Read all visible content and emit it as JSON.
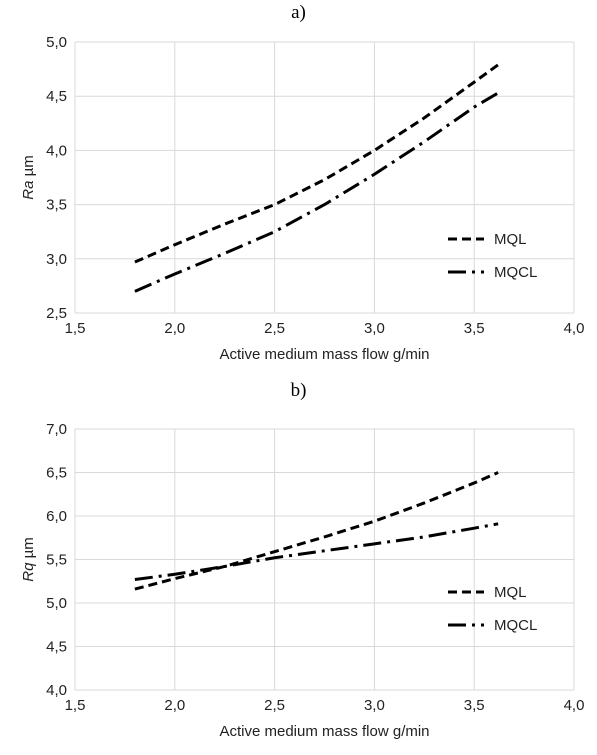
{
  "chart_data": [
    {
      "type": "line",
      "panel_label": "a)",
      "xlabel": "Active medium mass flow  g/min",
      "ylabel_symbol": "Ra",
      "ylabel_unit": "µm",
      "xlim": [
        1.5,
        4.0
      ],
      "ylim": [
        2.5,
        5.0
      ],
      "xticks": [
        1.5,
        2.0,
        2.5,
        3.0,
        3.5,
        4.0
      ],
      "yticks": [
        2.5,
        3.0,
        3.5,
        4.0,
        4.5,
        5.0
      ],
      "xtick_labels": [
        "1,5",
        "2,0",
        "2,5",
        "3,0",
        "3,5",
        "4,0"
      ],
      "ytick_labels": [
        "2,5",
        "3,0",
        "3,5",
        "4,0",
        "4,5",
        "5,0"
      ],
      "grid": true,
      "legend_position": "right",
      "series": [
        {
          "name": "MQL",
          "dash": "dashed",
          "x": [
            1.8,
            2.0,
            2.25,
            2.5,
            2.75,
            3.0,
            3.25,
            3.5,
            3.62
          ],
          "y": [
            2.97,
            3.13,
            3.32,
            3.5,
            3.73,
            4.0,
            4.3,
            4.63,
            4.79
          ]
        },
        {
          "name": "MQCL",
          "dash": "dashdot",
          "x": [
            1.8,
            2.0,
            2.25,
            2.5,
            2.75,
            3.0,
            3.25,
            3.5,
            3.62
          ],
          "y": [
            2.7,
            2.86,
            3.05,
            3.25,
            3.5,
            3.78,
            4.08,
            4.4,
            4.53
          ]
        }
      ]
    },
    {
      "type": "line",
      "panel_label": "b)",
      "xlabel": "Active medium mass flow  g/min",
      "ylabel_symbol": "Rq",
      "ylabel_unit": "µm",
      "xlim": [
        1.5,
        4.0
      ],
      "ylim": [
        4.0,
        7.0
      ],
      "xticks": [
        1.5,
        2.0,
        2.5,
        3.0,
        3.5,
        4.0
      ],
      "yticks": [
        4.0,
        4.5,
        5.0,
        5.5,
        6.0,
        6.5,
        7.0
      ],
      "xtick_labels": [
        "1,5",
        "2,0",
        "2,5",
        "3,0",
        "3,5",
        "4,0"
      ],
      "ytick_labels": [
        "4,0",
        "4,5",
        "5,0",
        "5,5",
        "6,0",
        "6,5",
        "7,0"
      ],
      "grid": true,
      "legend_position": "right",
      "series": [
        {
          "name": "MQL",
          "dash": "dashed",
          "x": [
            1.8,
            2.0,
            2.25,
            2.5,
            2.75,
            3.0,
            3.25,
            3.5,
            3.62
          ],
          "y": [
            5.16,
            5.28,
            5.42,
            5.59,
            5.76,
            5.94,
            6.15,
            6.38,
            6.5
          ]
        },
        {
          "name": "MQCL",
          "dash": "dashdot",
          "x": [
            1.8,
            2.0,
            2.25,
            2.5,
            2.75,
            3.0,
            3.25,
            3.5,
            3.62
          ],
          "y": [
            5.27,
            5.33,
            5.42,
            5.52,
            5.6,
            5.68,
            5.76,
            5.86,
            5.91
          ]
        }
      ]
    }
  ]
}
